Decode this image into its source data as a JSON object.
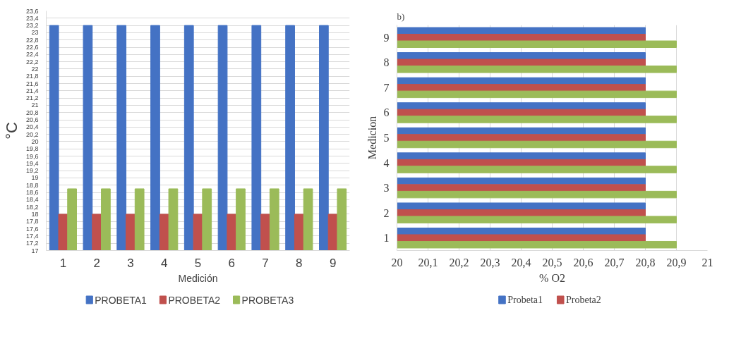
{
  "chart_data": [
    {
      "type": "bar",
      "ylabel": "°C",
      "xlabel": "Medición",
      "categories": [
        "1",
        "2",
        "3",
        "4",
        "5",
        "6",
        "7",
        "8",
        "9"
      ],
      "series": [
        {
          "name": "PROBETA1",
          "color": "#4472c4",
          "values": [
            23.2,
            23.2,
            23.2,
            23.2,
            23.2,
            23.2,
            23.2,
            23.2,
            23.2
          ]
        },
        {
          "name": "PROBETA2",
          "color": "#c0504d",
          "values": [
            18,
            18,
            18,
            18,
            18,
            18,
            18,
            18,
            18
          ]
        },
        {
          "name": "PROBETA3",
          "color": "#9bbb59",
          "values": [
            18.7,
            18.7,
            18.7,
            18.7,
            18.7,
            18.7,
            18.7,
            18.7,
            18.7
          ]
        }
      ],
      "ylim": [
        17,
        23.6
      ],
      "yticks": [
        17,
        {
          "value": 17.2,
          "label": "17,2"
        },
        {
          "value": 17.4,
          "label": "17,4"
        },
        {
          "value": 17.6,
          "label": "17,6"
        },
        {
          "value": 17.8,
          "label": "17,8"
        },
        18,
        {
          "value": 18.2,
          "label": "18,2"
        },
        {
          "value": 18.4,
          "label": "18,4"
        },
        {
          "value": 18.6,
          "label": "18,6"
        },
        {
          "value": 18.8,
          "label": "18,8"
        },
        19,
        {
          "value": 19.2,
          "label": "19,2"
        },
        {
          "value": 19.4,
          "label": "19,4"
        },
        {
          "value": 19.6,
          "label": "19,6"
        },
        {
          "value": 19.8,
          "label": "19,8"
        },
        20,
        {
          "value": 20.2,
          "label": "20,2"
        },
        {
          "value": 20.4,
          "label": "20,4"
        },
        {
          "value": 20.6,
          "label": "20,6"
        },
        {
          "value": 20.8,
          "label": "20,8"
        },
        21,
        {
          "value": 21.2,
          "label": "21,2"
        },
        {
          "value": 21.4,
          "label": "21,4"
        },
        {
          "value": 21.6,
          "label": "21,6"
        },
        {
          "value": 21.8,
          "label": "21,8"
        },
        22,
        {
          "value": 22.2,
          "label": "22,2"
        },
        {
          "value": 22.4,
          "label": "22,4"
        },
        {
          "value": 22.6,
          "label": "22,6"
        },
        {
          "value": 22.8,
          "label": "22,8"
        },
        23,
        {
          "value": 23.2,
          "label": "23,2"
        },
        {
          "value": 23.4,
          "label": "23,4"
        },
        {
          "value": 23.6,
          "label": "23,6"
        }
      ],
      "grid": "y",
      "legend": "bottom"
    },
    {
      "type": "bar",
      "orientation": "horizontal",
      "ylabel": "Medicion",
      "xlabel": "% O2",
      "categories": [
        "9",
        "8",
        "7",
        "6",
        "5",
        "4",
        "3",
        "2",
        "1"
      ],
      "series": [
        {
          "name": "Probeta1",
          "color": "#4472c4",
          "values": [
            20.8,
            20.8,
            20.8,
            20.8,
            20.8,
            20.8,
            20.8,
            20.8,
            20.8
          ]
        },
        {
          "name": "Probeta2",
          "color": "#c0504d",
          "values": [
            20.8,
            20.8,
            20.8,
            20.8,
            20.8,
            20.8,
            20.8,
            20.8,
            20.8
          ]
        },
        {
          "color": "#9bbb59",
          "values": [
            20.9,
            20.9,
            20.9,
            20.9,
            20.9,
            20.9,
            20.9,
            20.9,
            20.9
          ]
        }
      ],
      "xlim": [
        20,
        21
      ],
      "xticks": [
        20,
        {
          "value": 20.1,
          "label": "20,1"
        },
        {
          "value": 20.2,
          "label": "20,2"
        },
        {
          "value": 20.3,
          "label": "20,3"
        },
        {
          "value": 20.4,
          "label": "20,4"
        },
        {
          "value": 20.5,
          "label": "20,5"
        },
        {
          "value": 20.6,
          "label": "20,6"
        },
        {
          "value": 20.7,
          "label": "20,7"
        },
        {
          "value": 20.8,
          "label": "20,8"
        },
        {
          "value": 20.9,
          "label": "20,9"
        },
        21
      ],
      "grid": "x",
      "legend": "bottom",
      "annotations": [
        "b)"
      ]
    }
  ]
}
